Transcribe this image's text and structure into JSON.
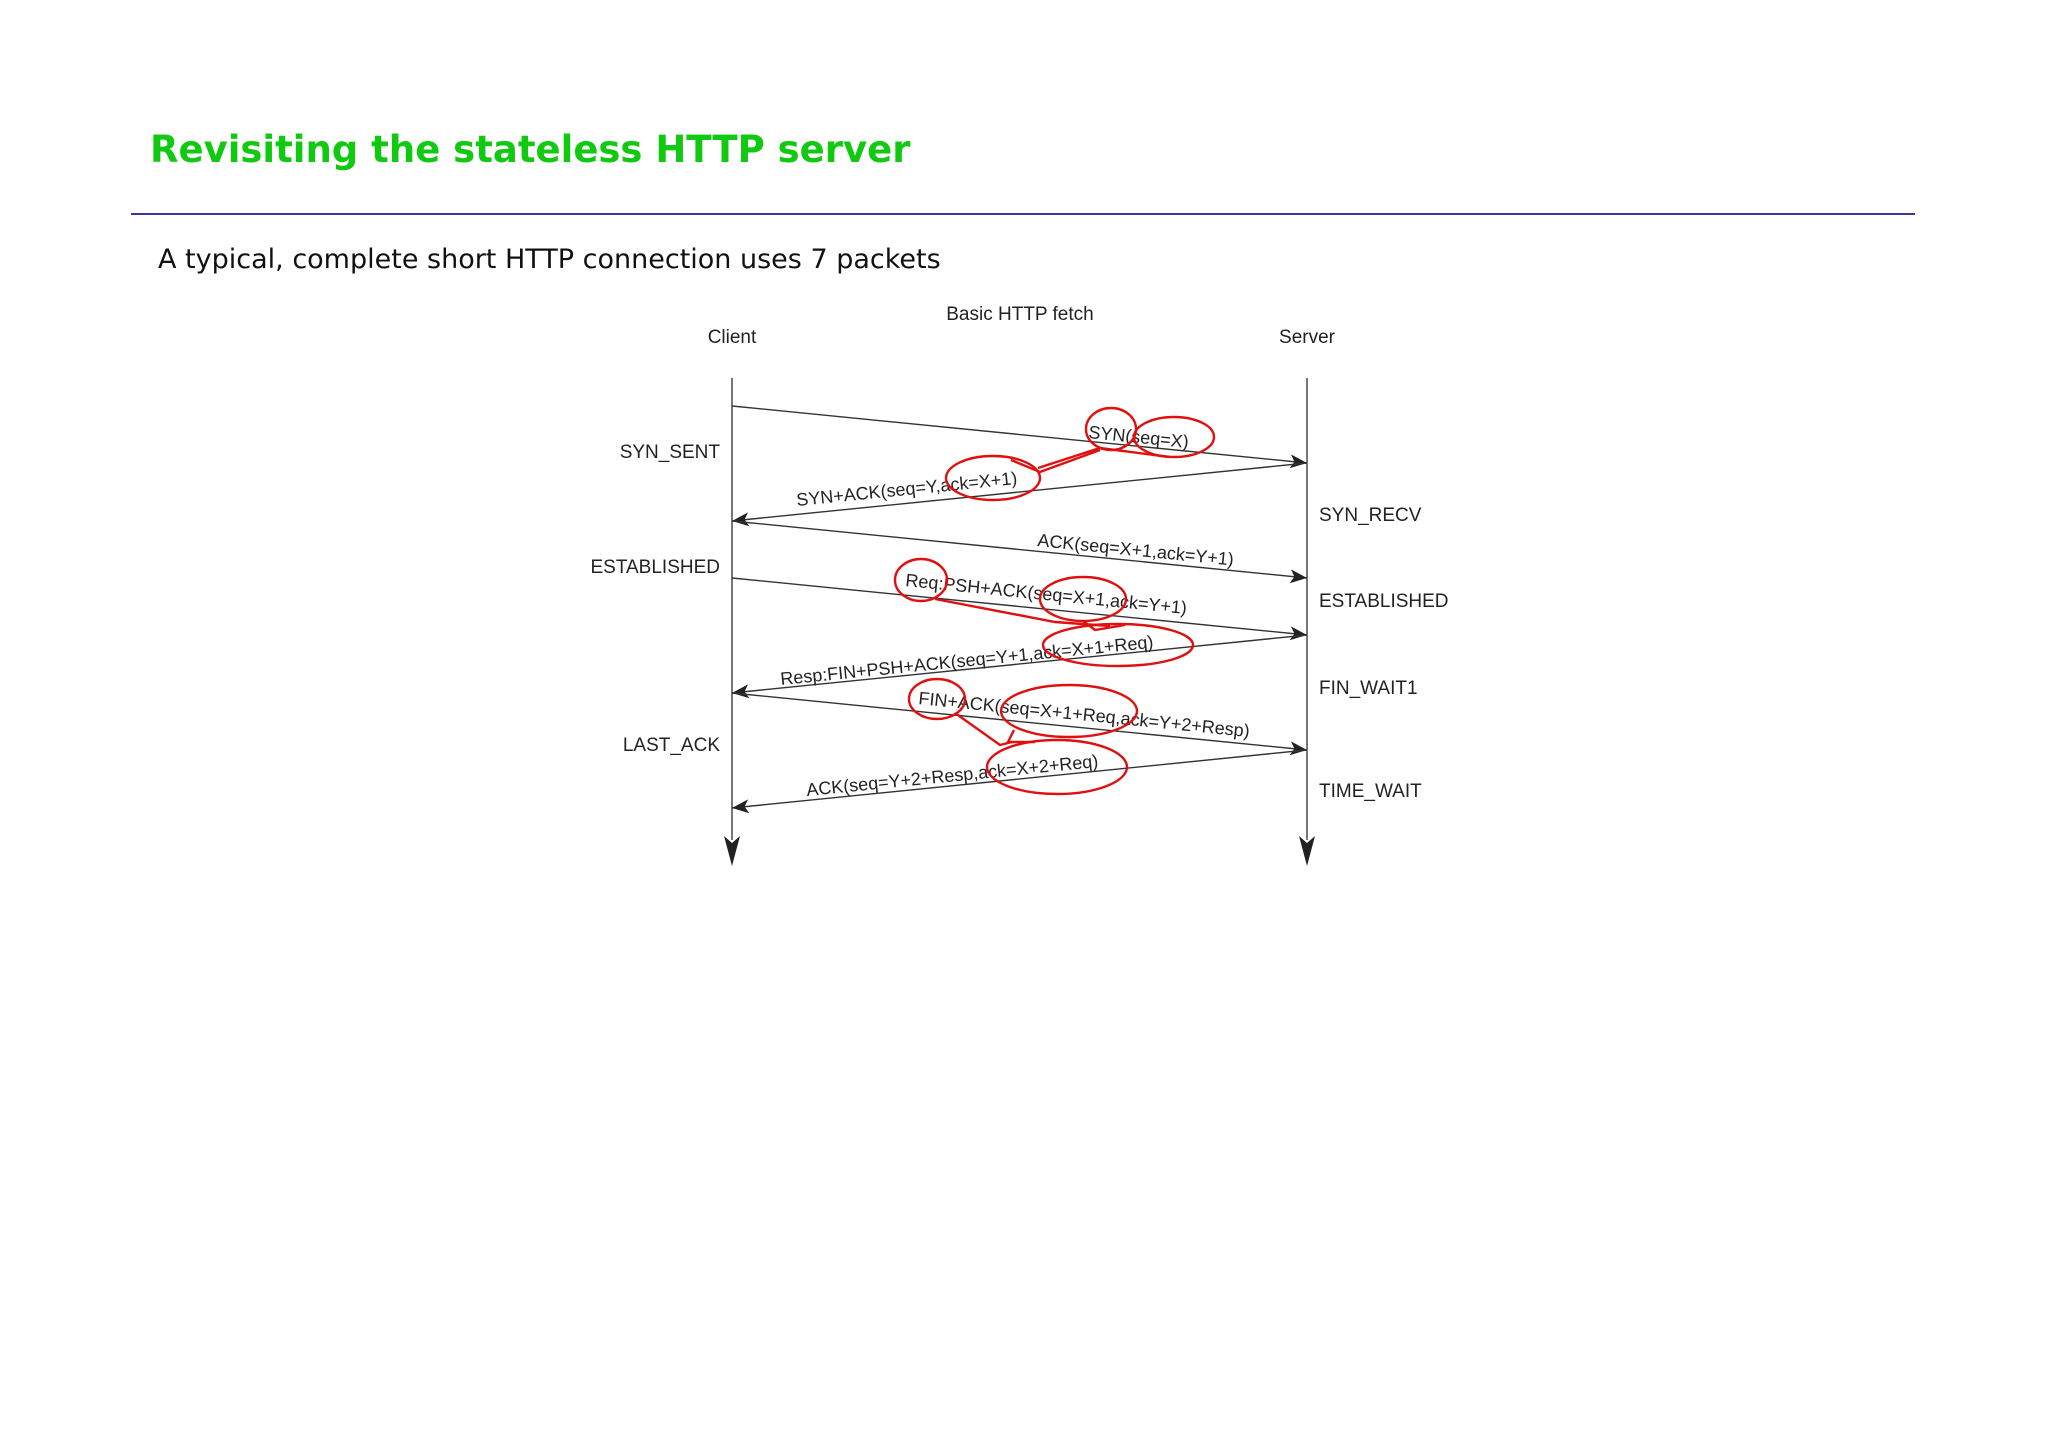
{
  "slide": {
    "title": "Revisiting the stateless HTTP server",
    "text": "A typical, complete short HTTP connection uses 7 packets"
  },
  "diagram": {
    "title": "Basic HTTP fetch",
    "client_label": "Client",
    "server_label": "Server",
    "client_states": [
      "SYN_SENT",
      "ESTABLISHED",
      "LAST_ACK"
    ],
    "server_states": [
      "SYN_RECV",
      "ESTABLISHED",
      "FIN_WAIT1",
      "TIME_WAIT"
    ],
    "messages": [
      "SYN(seq=X)",
      "SYN+ACK(seq=Y,ack=X+1)",
      "ACK(seq=X+1,ack=Y+1)",
      "Req:PSH+ACK(seq=X+1,ack=Y+1)",
      "Resp:FIN+PSH+ACK(seq=Y+1,ack=X+1+Req)",
      "FIN+ACK(seq=X+1+Req,ack=Y+2+Resp)",
      "ACK(seq=Y+2+Resp,ack=X+2+Req)"
    ],
    "colors": {
      "annotation": "#e01010",
      "title": "#12c912",
      "rule": "#3a3a96"
    }
  }
}
